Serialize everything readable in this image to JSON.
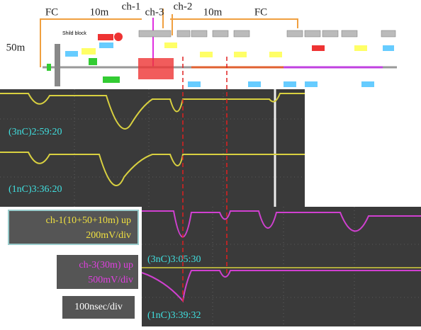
{
  "beamline": {
    "fc_left": "FC",
    "dist_left": "10m",
    "ch1": "ch-1",
    "ch3": "ch-3",
    "ch2": "ch-2",
    "dist_right": "10m",
    "fc_right": "FC",
    "dist_vertical": "50m",
    "shield": "Shild block"
  },
  "scope_top": {
    "trace_1": "(3nC)2:59:20",
    "trace_2": "(1nC)3:36:20"
  },
  "scope_bottom": {
    "trace_1": "(3nC)3:05:30",
    "trace_2": "(1nC)3:39:32"
  },
  "legend": {
    "ch1_name": "ch-1(10+50+10m) up",
    "ch1_scale": "200mV/div",
    "ch3_name": "ch-3(30m) up",
    "ch3_scale": "500mV/div",
    "timebase": "100nsec/div"
  }
}
